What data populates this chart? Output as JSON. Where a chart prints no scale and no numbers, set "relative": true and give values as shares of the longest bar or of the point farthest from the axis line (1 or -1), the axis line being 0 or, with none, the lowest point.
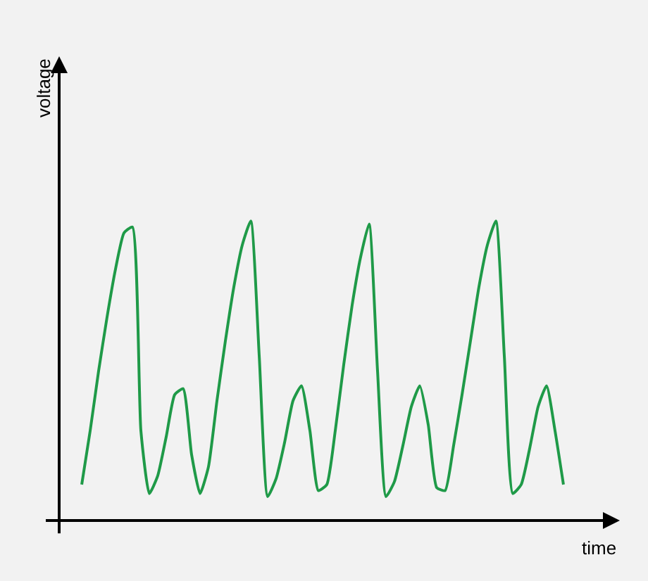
{
  "chart_data": {
    "type": "line",
    "relative": true,
    "xlabel": "time",
    "annotations": [
      "voltage"
    ],
    "grid": false,
    "legend": false,
    "marker": "none",
    "line_style": "solid",
    "categories": [
      null,
      null,
      null,
      null,
      null,
      null,
      null,
      null,
      null,
      null,
      null,
      null,
      null,
      null,
      null,
      null,
      null,
      null,
      null,
      null,
      null,
      null,
      null,
      null,
      null,
      null,
      null,
      null,
      null,
      null,
      null,
      null,
      null,
      null,
      null,
      null,
      null,
      null,
      null,
      null,
      null,
      null,
      null,
      null,
      null,
      null,
      null,
      null,
      null,
      null,
      null,
      null,
      null,
      null,
      null,
      null,
      null,
      null
    ],
    "series": [
      {
        "color": "#1f9a48",
        "values": [
          0.12,
          0.3,
          0.5,
          0.68,
          0.84,
          0.96,
          0.98,
          0.3,
          0.09,
          0.15,
          0.28,
          0.42,
          0.44,
          0.22,
          0.09,
          0.18,
          0.4,
          0.6,
          0.78,
          0.92,
          1.0,
          0.55,
          0.08,
          0.14,
          0.26,
          0.4,
          0.45,
          0.3,
          0.1,
          0.12,
          0.3,
          0.52,
          0.72,
          0.88,
          0.99,
          0.5,
          0.08,
          0.13,
          0.25,
          0.38,
          0.45,
          0.32,
          0.11,
          0.1,
          0.25,
          0.42,
          0.6,
          0.78,
          0.92,
          1.0,
          0.55,
          0.09,
          0.12,
          0.24,
          0.38,
          0.45,
          0.3,
          0.12
        ]
      }
    ]
  }
}
